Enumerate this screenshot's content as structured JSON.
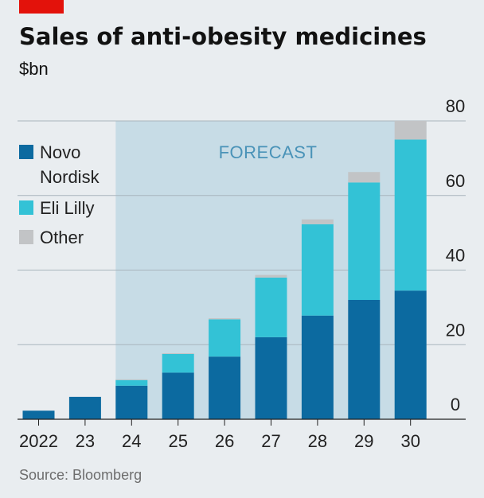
{
  "header": {
    "title": "Sales of anti-obesity medicines",
    "subtitle": "$bn"
  },
  "forecast_label": "FORECAST",
  "source": "Source: Bloomberg",
  "colors": {
    "brand": "#e3120b",
    "background": "#e9edf0",
    "forecast_shade": "#c7dce6",
    "gridline": "#a9b5bd"
  },
  "chart_data": {
    "type": "bar",
    "stacked": true,
    "categories": [
      "2022",
      "23",
      "24",
      "25",
      "26",
      "27",
      "28",
      "29",
      "30"
    ],
    "series": [
      {
        "name": "Novo Nordisk",
        "color": "#0c6aa0",
        "values": [
          2.3,
          6,
          9,
          12.5,
          16.8,
          22,
          27.8,
          32,
          34.5
        ]
      },
      {
        "name": "Eli Lilly",
        "color": "#33c2d6",
        "values": [
          0,
          0,
          1.5,
          5,
          10,
          16,
          24.5,
          31.5,
          40.5
        ]
      },
      {
        "name": "Other",
        "color": "#c2c4c6",
        "values": [
          0,
          0,
          0.2,
          0.2,
          0.3,
          0.7,
          1.3,
          2.8,
          5
        ]
      }
    ],
    "forecast_start": "24",
    "ylim": [
      0,
      80
    ],
    "yticks": [
      0,
      20,
      40,
      60,
      80
    ],
    "xlabel": "",
    "ylabel": "$bn",
    "grid": true,
    "legend": "left",
    "legend_lines": [
      [
        "Novo",
        "Nordisk"
      ],
      [
        "Eli Lilly"
      ],
      [
        "Other"
      ]
    ]
  }
}
